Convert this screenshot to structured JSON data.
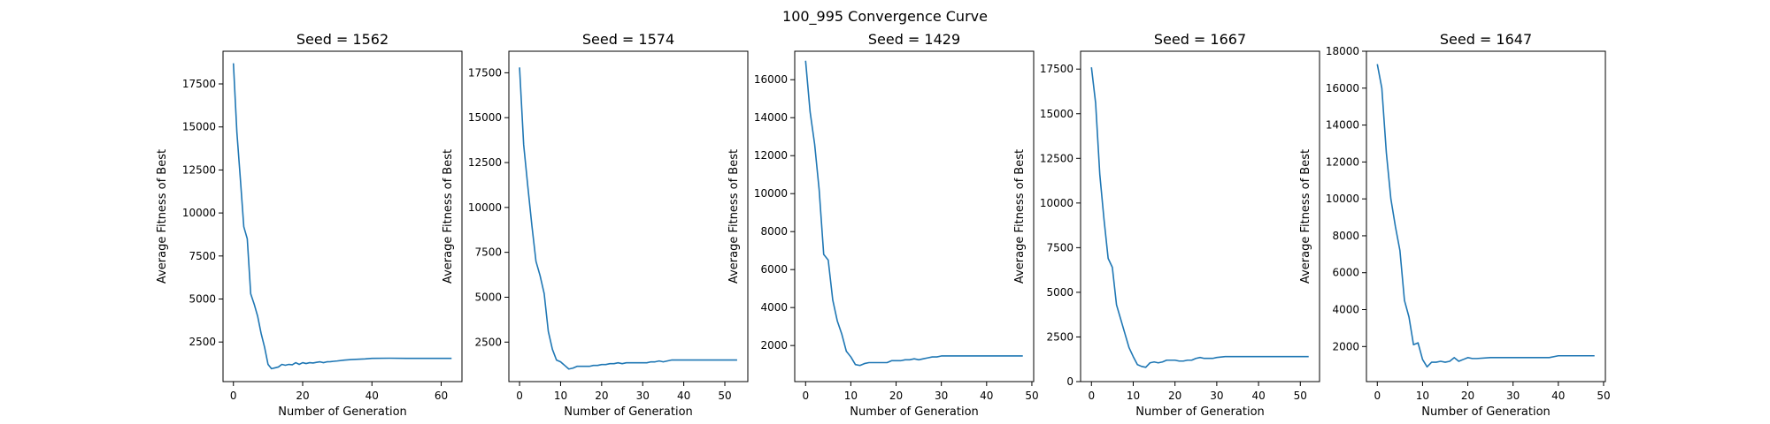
{
  "figure": {
    "suptitle": "100_995 Convergence Curve",
    "line_color": "#1f77b4"
  },
  "chart_data": [
    {
      "type": "line",
      "title": "Seed = 1562",
      "xlabel": "Number of Generation",
      "ylabel": "Average Fitness of Best",
      "xlim": [
        -3,
        66
      ],
      "ylim": [
        200,
        19400
      ],
      "xticks": [
        0,
        20,
        40,
        60
      ],
      "yticks": [
        2500,
        5000,
        7500,
        10000,
        12500,
        15000,
        17500
      ],
      "x": [
        0,
        1,
        2,
        3,
        4,
        5,
        6,
        7,
        8,
        9,
        10,
        11,
        12,
        13,
        14,
        15,
        16,
        17,
        18,
        19,
        20,
        21,
        22,
        23,
        24,
        25,
        26,
        27,
        28,
        29,
        30,
        32,
        34,
        36,
        38,
        40,
        45,
        50,
        55,
        60,
        63
      ],
      "y": [
        18700,
        14700,
        12000,
        9200,
        8500,
        5300,
        4700,
        4000,
        3000,
        2200,
        1200,
        950,
        1000,
        1050,
        1200,
        1150,
        1200,
        1180,
        1300,
        1200,
        1300,
        1250,
        1300,
        1280,
        1320,
        1350,
        1300,
        1350,
        1360,
        1380,
        1400,
        1450,
        1480,
        1500,
        1520,
        1550,
        1560,
        1550,
        1550,
        1550,
        1550
      ]
    },
    {
      "type": "line",
      "title": "Seed = 1574",
      "xlabel": "Number of Generation",
      "ylabel": "Average Fitness of Best",
      "xlim": [
        -2.6,
        55.6
      ],
      "ylim": [
        300,
        18700
      ],
      "xticks": [
        0,
        10,
        20,
        30,
        40,
        50
      ],
      "yticks": [
        2500,
        5000,
        7500,
        10000,
        12500,
        15000,
        17500
      ],
      "x": [
        0,
        1,
        2,
        3,
        4,
        5,
        6,
        7,
        8,
        9,
        10,
        11,
        12,
        13,
        14,
        15,
        16,
        17,
        18,
        19,
        20,
        21,
        22,
        23,
        24,
        25,
        26,
        27,
        28,
        29,
        30,
        31,
        32,
        33,
        34,
        35,
        36,
        37,
        38,
        40,
        45,
        50,
        53
      ],
      "y": [
        17800,
        13500,
        11200,
        9000,
        7000,
        6200,
        5200,
        3100,
        2100,
        1500,
        1400,
        1200,
        1000,
        1050,
        1150,
        1150,
        1150,
        1150,
        1200,
        1200,
        1250,
        1250,
        1300,
        1300,
        1350,
        1300,
        1350,
        1350,
        1350,
        1350,
        1350,
        1350,
        1400,
        1400,
        1450,
        1400,
        1450,
        1500,
        1500,
        1500,
        1500,
        1500,
        1500
      ]
    },
    {
      "type": "line",
      "title": "Seed = 1429",
      "xlabel": "Number of Generation",
      "ylabel": "Average Fitness of Best",
      "xlim": [
        -2.4,
        50.4
      ],
      "ylim": [
        100,
        17500
      ],
      "xticks": [
        0,
        10,
        20,
        30,
        40,
        50
      ],
      "yticks": [
        2000,
        4000,
        6000,
        8000,
        10000,
        12000,
        14000,
        16000
      ],
      "x": [
        0,
        1,
        2,
        3,
        4,
        5,
        6,
        7,
        8,
        9,
        10,
        11,
        12,
        13,
        14,
        15,
        16,
        17,
        18,
        19,
        20,
        21,
        22,
        23,
        24,
        25,
        26,
        27,
        28,
        29,
        30,
        35,
        40,
        45,
        48
      ],
      "y": [
        17000,
        14300,
        12600,
        10200,
        6800,
        6500,
        4400,
        3300,
        2600,
        1700,
        1400,
        1000,
        950,
        1050,
        1100,
        1100,
        1100,
        1100,
        1100,
        1200,
        1200,
        1200,
        1250,
        1250,
        1300,
        1250,
        1300,
        1350,
        1400,
        1400,
        1450,
        1450,
        1450,
        1450,
        1450
      ]
    },
    {
      "type": "line",
      "title": "Seed = 1667",
      "xlabel": "Number of Generation",
      "ylabel": "Average Fitness of Best",
      "xlim": [
        -2.6,
        54.6
      ],
      "ylim": [
        0,
        18500
      ],
      "xticks": [
        0,
        10,
        20,
        30,
        40,
        50
      ],
      "yticks": [
        0,
        2500,
        5000,
        7500,
        10000,
        12500,
        15000,
        17500
      ],
      "x": [
        0,
        1,
        2,
        3,
        4,
        5,
        6,
        7,
        8,
        9,
        10,
        11,
        12,
        13,
        14,
        15,
        16,
        17,
        18,
        19,
        20,
        21,
        22,
        23,
        24,
        25,
        26,
        27,
        28,
        29,
        30,
        32,
        35,
        40,
        45,
        50,
        52
      ],
      "y": [
        17600,
        15600,
        11600,
        9100,
        6900,
        6400,
        4300,
        3500,
        2700,
        1900,
        1400,
        950,
        850,
        800,
        1050,
        1100,
        1050,
        1100,
        1200,
        1200,
        1200,
        1150,
        1150,
        1200,
        1200,
        1300,
        1350,
        1300,
        1300,
        1300,
        1350,
        1400,
        1400,
        1400,
        1400,
        1400,
        1400
      ]
    },
    {
      "type": "line",
      "title": "Seed = 1647",
      "xlabel": "Number of Generation",
      "ylabel": "Average Fitness of Best",
      "xlim": [
        -2.4,
        50.4
      ],
      "ylim": [
        100,
        18000
      ],
      "xticks": [
        0,
        10,
        20,
        30,
        40,
        50
      ],
      "yticks": [
        2000,
        4000,
        6000,
        8000,
        10000,
        12000,
        14000,
        16000,
        18000
      ],
      "x": [
        0,
        1,
        2,
        3,
        4,
        5,
        6,
        7,
        8,
        9,
        10,
        11,
        12,
        13,
        14,
        15,
        16,
        17,
        18,
        19,
        20,
        21,
        22,
        25,
        30,
        35,
        38,
        40,
        45,
        48
      ],
      "y": [
        17300,
        16000,
        12500,
        10000,
        8500,
        7200,
        4500,
        3600,
        2100,
        2200,
        1300,
        900,
        1150,
        1150,
        1200,
        1150,
        1200,
        1400,
        1200,
        1300,
        1400,
        1350,
        1350,
        1400,
        1400,
        1400,
        1400,
        1500,
        1500,
        1500
      ]
    }
  ]
}
